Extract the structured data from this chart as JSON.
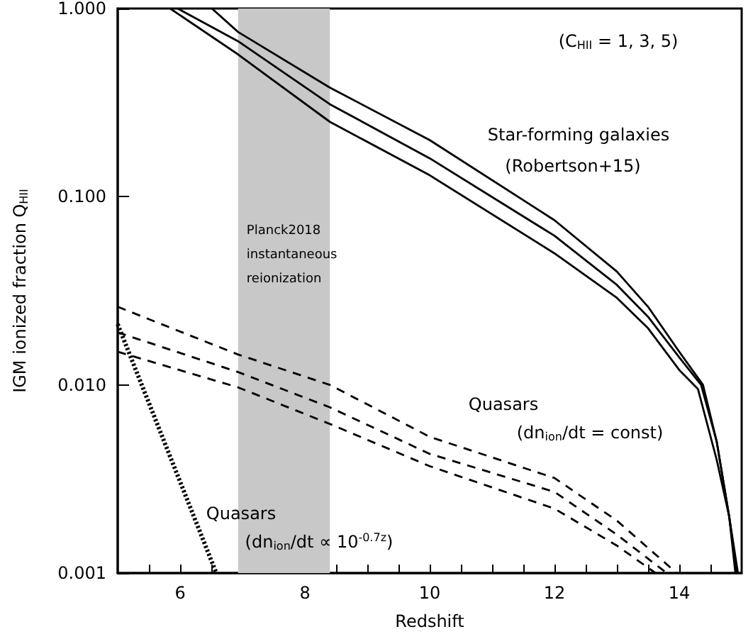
{
  "chart_data": {
    "type": "line",
    "xlabel": "Redshift",
    "ylabel": "IGM ionized fraction Q$_{HII}$",
    "xlim": [
      5,
      15
    ],
    "ylim": [
      0.001,
      1
    ],
    "log": "y",
    "xticks": [
      {
        "value": 5.5,
        "label": null
      },
      6,
      {
        "value": 6.5,
        "label": null
      },
      {
        "value": 7,
        "label": null
      },
      {
        "value": 7.5,
        "label": null
      },
      8,
      {
        "value": 8.5,
        "label": null
      },
      {
        "value": 9,
        "label": null
      },
      {
        "value": 9.5,
        "label": null
      },
      10,
      {
        "value": 10.5,
        "label": null
      },
      {
        "value": 11,
        "label": null
      },
      {
        "value": 11.5,
        "label": null
      },
      12,
      {
        "value": 12.5,
        "label": null
      },
      {
        "value": 13,
        "label": null
      },
      {
        "value": 13.5,
        "label": null
      },
      14,
      {
        "value": 14.5,
        "label": null
      }
    ],
    "yticks": [
      {
        "value": 0.001,
        "label": "0.001"
      },
      {
        "value": 0.01,
        "label": "0.010"
      },
      {
        "value": 0.1,
        "label": "0.100"
      },
      {
        "value": 1,
        "label": "1.000"
      }
    ],
    "grid": false,
    "marker": "none",
    "series": [
      {
        "color": "#000000",
        "line_style": "solid",
        "x": [
          5.84,
          6.93,
          8.4,
          10,
          12,
          13,
          13.5,
          14,
          14.3,
          14.6,
          14.8,
          14.9
        ],
        "values": [
          1,
          0.57,
          0.25,
          0.13,
          0.05,
          0.029,
          0.02,
          0.012,
          0.0095,
          0.004,
          0.002,
          0.001
        ]
      },
      {
        "color": "#000000",
        "line_style": "solid",
        "x": [
          5.96,
          6.93,
          8.4,
          10,
          12,
          13,
          13.5,
          14,
          14.35,
          14.6,
          14.8,
          14.92
        ],
        "values": [
          1,
          0.67,
          0.31,
          0.16,
          0.062,
          0.034,
          0.023,
          0.014,
          0.01,
          0.005,
          0.002,
          0.001
        ]
      },
      {
        "color": "#000000",
        "line_style": "solid",
        "x": [
          6.51,
          6.93,
          8.4,
          10,
          12,
          13,
          13.5,
          14,
          14.38,
          14.6,
          14.8,
          14.94
        ],
        "values": [
          1,
          0.75,
          0.38,
          0.2,
          0.075,
          0.04,
          0.026,
          0.015,
          0.01,
          0.005,
          0.002,
          0.001
        ]
      },
      {
        "color": "#000000",
        "line_style": "dashed",
        "x": [
          5,
          6.93,
          8.4,
          10,
          12,
          13,
          13.62
        ],
        "values": [
          0.015,
          0.0097,
          0.0062,
          0.0037,
          0.0022,
          0.0014,
          0.001
        ]
      },
      {
        "color": "#000000",
        "line_style": "dashed",
        "x": [
          5,
          6.93,
          8.4,
          10,
          12,
          13,
          13.8
        ],
        "values": [
          0.019,
          0.0117,
          0.0076,
          0.0043,
          0.0027,
          0.0016,
          0.001
        ]
      },
      {
        "color": "#000000",
        "line_style": "dashed",
        "x": [
          5,
          6.93,
          8.4,
          10,
          12,
          13,
          13.96
        ],
        "values": [
          0.026,
          0.0145,
          0.01,
          0.0053,
          0.0032,
          0.0019,
          0.001
        ]
      },
      {
        "color": "#000000",
        "line_style": "dotted",
        "x": [
          5,
          6.58
        ],
        "values": [
          0.021,
          0.001
        ]
      }
    ],
    "bands": [
      {
        "axis": "x",
        "from": 6.93,
        "to": 8.4,
        "label": "Planck2018\ninstantaneous\nreionization",
        "color": "#c8c8c8"
      }
    ],
    "annotations": [
      "(C$_{HII}$ = 1, 3, 5)",
      "Star-forming galaxies",
      "(Robertson+15)",
      "Quasars",
      "(dn$_{ion}$/dt = const)",
      "Quasars",
      "(dn$_{ion}$/dt ∝ 10$^{-0.7z}$)"
    ]
  }
}
